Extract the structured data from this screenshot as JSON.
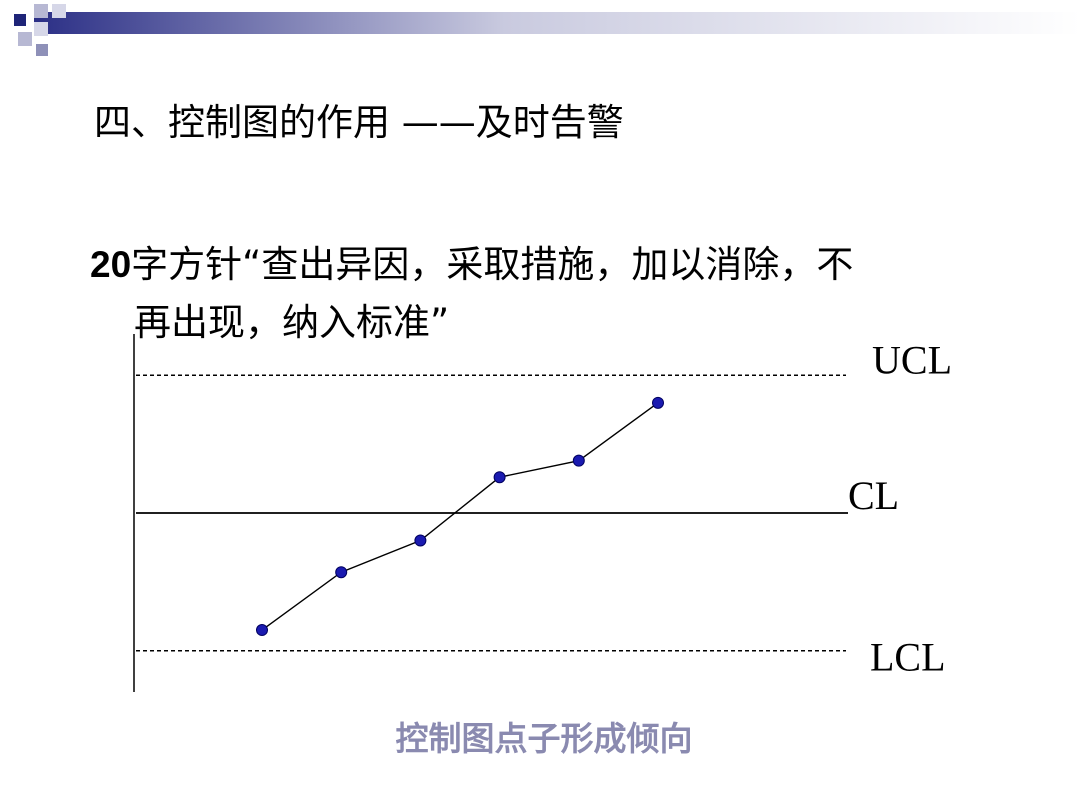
{
  "slide": {
    "title": "四、控制图的作用 ——及时告警",
    "bullet_number": "20",
    "bullet_line1": "字方针“查出异因，采取措施，加以消除，不",
    "bullet_line2": "再出现，纳入标准”",
    "caption": "控制图点子形成倾向",
    "caption_color": "#8a8ab0",
    "accent_color": "#1a1a8c"
  },
  "chart_data": {
    "type": "line",
    "title": "",
    "xlabel": "",
    "ylabel": "",
    "limits": {
      "UCL": {
        "label": "UCL",
        "value": 1,
        "style": "dashed"
      },
      "CL": {
        "label": "CL",
        "value": 0,
        "style": "solid"
      },
      "LCL": {
        "label": "LCL",
        "value": -1,
        "style": "dashed"
      }
    },
    "ylim": [
      -1.3,
      1.3
    ],
    "x": [
      1,
      2,
      3,
      4,
      5,
      6
    ],
    "series": [
      {
        "values": [
          -0.85,
          -0.43,
          -0.2,
          0.26,
          0.38,
          0.8
        ]
      }
    ],
    "point_color": "#1a1ab0",
    "grid": false,
    "legend": "none"
  }
}
